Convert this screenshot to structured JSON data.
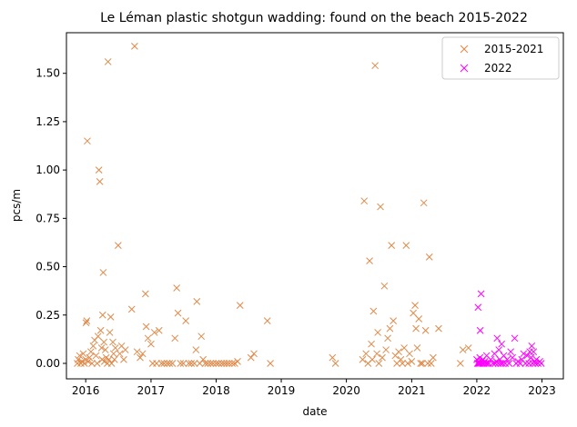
{
  "chart_data": {
    "type": "scatter",
    "title": "Le Léman plastic shotgun wadding: found on the beach 2015-2022",
    "xlabel": "date",
    "ylabel": "pcs/m",
    "xlim": [
      "2015-09-15",
      "2023-05-01"
    ],
    "ylim": [
      -0.08,
      1.71
    ],
    "x_ticks": [
      "2016",
      "2017",
      "2018",
      "2019",
      "2020",
      "2021",
      "2022",
      "2023"
    ],
    "y_ticks": [
      "0.00",
      "0.25",
      "0.50",
      "0.75",
      "1.00",
      "1.25",
      "1.50"
    ],
    "y_tick_values": [
      0,
      0.25,
      0.5,
      0.75,
      1.0,
      1.25,
      1.5
    ],
    "marker": "x",
    "grid": false,
    "legend_position": "top-right",
    "series": [
      {
        "name": "2015-2021",
        "color": "#E08A4A",
        "points": [
          [
            "2015-11-15",
            0.0
          ],
          [
            "2015-11-20",
            0.02
          ],
          [
            "2015-11-28",
            0.04
          ],
          [
            "2015-12-05",
            0.0
          ],
          [
            "2015-12-10",
            0.01
          ],
          [
            "2015-12-18",
            0.05
          ],
          [
            "2015-12-25",
            0.0
          ],
          [
            "2016-01-01",
            0.02
          ],
          [
            "2016-01-03",
            0.21
          ],
          [
            "2016-01-07",
            0.22
          ],
          [
            "2016-01-10",
            1.15
          ],
          [
            "2016-01-15",
            0.01
          ],
          [
            "2016-01-22",
            0.03
          ],
          [
            "2016-01-30",
            0.06
          ],
          [
            "2016-02-05",
            0.0
          ],
          [
            "2016-02-12",
            0.09
          ],
          [
            "2016-02-20",
            0.12
          ],
          [
            "2016-02-28",
            0.04
          ],
          [
            "2016-03-05",
            0.0
          ],
          [
            "2016-03-10",
            0.14
          ],
          [
            "2016-03-15",
            1.0
          ],
          [
            "2016-03-20",
            0.94
          ],
          [
            "2016-03-25",
            0.17
          ],
          [
            "2016-03-30",
            0.08
          ],
          [
            "2016-04-02",
            0.02
          ],
          [
            "2016-04-05",
            0.25
          ],
          [
            "2016-04-08",
            0.47
          ],
          [
            "2016-04-12",
            0.11
          ],
          [
            "2016-04-15",
            0.01
          ],
          [
            "2016-04-20",
            0.07
          ],
          [
            "2016-04-25",
            0.03
          ],
          [
            "2016-05-01",
            0.0
          ],
          [
            "2016-05-05",
            1.56
          ],
          [
            "2016-05-10",
            0.02
          ],
          [
            "2016-05-15",
            0.16
          ],
          [
            "2016-05-20",
            0.24
          ],
          [
            "2016-05-25",
            0.0
          ],
          [
            "2016-06-01",
            0.11
          ],
          [
            "2016-06-05",
            0.05
          ],
          [
            "2016-06-10",
            0.02
          ],
          [
            "2016-06-15",
            0.08
          ],
          [
            "2016-07-01",
            0.61
          ],
          [
            "2016-07-10",
            0.05
          ],
          [
            "2016-07-20",
            0.09
          ],
          [
            "2016-08-01",
            0.02
          ],
          [
            "2016-08-10",
            0.07
          ],
          [
            "2016-09-15",
            0.28
          ],
          [
            "2016-10-01",
            1.64
          ],
          [
            "2016-10-15",
            0.06
          ],
          [
            "2016-11-01",
            0.03
          ],
          [
            "2016-11-15",
            0.05
          ],
          [
            "2016-12-01",
            0.36
          ],
          [
            "2016-12-05",
            0.19
          ],
          [
            "2016-12-15",
            0.13
          ],
          [
            "2017-01-01",
            0.1
          ],
          [
            "2017-01-10",
            0.0
          ],
          [
            "2017-01-20",
            0.16
          ],
          [
            "2017-02-01",
            0.0
          ],
          [
            "2017-02-15",
            0.17
          ],
          [
            "2017-03-01",
            0.0
          ],
          [
            "2017-03-15",
            0.0
          ],
          [
            "2017-04-01",
            0.0
          ],
          [
            "2017-04-15",
            0.0
          ],
          [
            "2017-05-01",
            0.0
          ],
          [
            "2017-05-15",
            0.13
          ],
          [
            "2017-05-25",
            0.39
          ],
          [
            "2017-06-01",
            0.26
          ],
          [
            "2017-06-15",
            0.0
          ],
          [
            "2017-07-01",
            0.0
          ],
          [
            "2017-07-15",
            0.22
          ],
          [
            "2017-08-01",
            0.0
          ],
          [
            "2017-08-15",
            0.0
          ],
          [
            "2017-09-01",
            0.0
          ],
          [
            "2017-09-10",
            0.07
          ],
          [
            "2017-09-15",
            0.32
          ],
          [
            "2017-10-01",
            0.0
          ],
          [
            "2017-10-10",
            0.14
          ],
          [
            "2017-10-20",
            0.02
          ],
          [
            "2017-11-01",
            0.0
          ],
          [
            "2017-11-15",
            0.0
          ],
          [
            "2017-12-01",
            0.0
          ],
          [
            "2017-12-15",
            0.0
          ],
          [
            "2018-01-01",
            0.0
          ],
          [
            "2018-01-15",
            0.0
          ],
          [
            "2018-02-01",
            0.0
          ],
          [
            "2018-02-15",
            0.0
          ],
          [
            "2018-03-01",
            0.0
          ],
          [
            "2018-03-15",
            0.0
          ],
          [
            "2018-04-01",
            0.0
          ],
          [
            "2018-04-15",
            0.0
          ],
          [
            "2018-05-01",
            0.01
          ],
          [
            "2018-05-15",
            0.3
          ],
          [
            "2018-07-15",
            0.03
          ],
          [
            "2018-08-01",
            0.05
          ],
          [
            "2018-10-15",
            0.22
          ],
          [
            "2018-11-01",
            0.0
          ],
          [
            "2019-10-15",
            0.03
          ],
          [
            "2019-11-01",
            0.0
          ],
          [
            "2020-04-01",
            0.02
          ],
          [
            "2020-04-10",
            0.84
          ],
          [
            "2020-04-20",
            0.05
          ],
          [
            "2020-05-01",
            0.0
          ],
          [
            "2020-05-10",
            0.53
          ],
          [
            "2020-05-20",
            0.1
          ],
          [
            "2020-05-25",
            0.02
          ],
          [
            "2020-06-01",
            0.27
          ],
          [
            "2020-06-10",
            1.54
          ],
          [
            "2020-06-20",
            0.05
          ],
          [
            "2020-06-25",
            0.16
          ],
          [
            "2020-07-01",
            0.0
          ],
          [
            "2020-07-10",
            0.81
          ],
          [
            "2020-07-20",
            0.03
          ],
          [
            "2020-08-01",
            0.4
          ],
          [
            "2020-08-10",
            0.07
          ],
          [
            "2020-08-20",
            0.13
          ],
          [
            "2020-09-01",
            0.18
          ],
          [
            "2020-09-10",
            0.61
          ],
          [
            "2020-09-20",
            0.22
          ],
          [
            "2020-10-01",
            0.04
          ],
          [
            "2020-10-10",
            0.0
          ],
          [
            "2020-10-20",
            0.06
          ],
          [
            "2020-11-01",
            0.02
          ],
          [
            "2020-11-10",
            0.0
          ],
          [
            "2020-11-20",
            0.08
          ],
          [
            "2020-12-01",
            0.61
          ],
          [
            "2020-12-10",
            0.0
          ],
          [
            "2020-12-20",
            0.05
          ],
          [
            "2021-01-01",
            0.01
          ],
          [
            "2021-01-10",
            0.26
          ],
          [
            "2021-01-20",
            0.3
          ],
          [
            "2021-01-25",
            0.18
          ],
          [
            "2021-02-01",
            0.08
          ],
          [
            "2021-02-10",
            0.23
          ],
          [
            "2021-02-20",
            0.0
          ],
          [
            "2021-03-01",
            0.0
          ],
          [
            "2021-03-10",
            0.83
          ],
          [
            "2021-03-20",
            0.17
          ],
          [
            "2021-04-01",
            0.0
          ],
          [
            "2021-04-10",
            0.55
          ],
          [
            "2021-04-20",
            0.0
          ],
          [
            "2021-05-01",
            0.03
          ],
          [
            "2021-06-01",
            0.18
          ],
          [
            "2021-10-01",
            0.0
          ],
          [
            "2021-10-15",
            0.07
          ],
          [
            "2021-11-15",
            0.08
          ]
        ]
      },
      {
        "name": "2022",
        "color": "#FF00FF",
        "points": [
          [
            "2022-01-01",
            0.02
          ],
          [
            "2022-01-05",
            0.0
          ],
          [
            "2022-01-08",
            0.29
          ],
          [
            "2022-01-10",
            0.0
          ],
          [
            "2022-01-12",
            0.01
          ],
          [
            "2022-01-15",
            0.0
          ],
          [
            "2022-01-18",
            0.03
          ],
          [
            "2022-01-20",
            0.17
          ],
          [
            "2022-01-22",
            0.0
          ],
          [
            "2022-01-25",
            0.36
          ],
          [
            "2022-01-28",
            0.01
          ],
          [
            "2022-02-01",
            0.0
          ],
          [
            "2022-02-05",
            0.02
          ],
          [
            "2022-02-10",
            0.0
          ],
          [
            "2022-02-15",
            0.01
          ],
          [
            "2022-02-20",
            0.0
          ],
          [
            "2022-02-25",
            0.04
          ],
          [
            "2022-03-01",
            0.0
          ],
          [
            "2022-03-10",
            0.0
          ],
          [
            "2022-03-20",
            0.02
          ],
          [
            "2022-04-01",
            0.0
          ],
          [
            "2022-04-10",
            0.05
          ],
          [
            "2022-04-15",
            0.0
          ],
          [
            "2022-04-20",
            0.01
          ],
          [
            "2022-04-25",
            0.13
          ],
          [
            "2022-05-01",
            0.0
          ],
          [
            "2022-05-05",
            0.07
          ],
          [
            "2022-05-10",
            0.02
          ],
          [
            "2022-05-15",
            0.0
          ],
          [
            "2022-05-20",
            0.1
          ],
          [
            "2022-05-25",
            0.0
          ],
          [
            "2022-06-01",
            0.04
          ],
          [
            "2022-06-10",
            0.0
          ],
          [
            "2022-06-20",
            0.02
          ],
          [
            "2022-07-01",
            0.0
          ],
          [
            "2022-07-10",
            0.06
          ],
          [
            "2022-07-20",
            0.03
          ],
          [
            "2022-08-01",
            0.13
          ],
          [
            "2022-08-10",
            0.0
          ],
          [
            "2022-08-20",
            0.01
          ],
          [
            "2022-09-01",
            0.0
          ],
          [
            "2022-09-10",
            0.02
          ],
          [
            "2022-09-20",
            0.05
          ],
          [
            "2022-10-01",
            0.0
          ],
          [
            "2022-10-10",
            0.04
          ],
          [
            "2022-10-20",
            0.0
          ],
          [
            "2022-10-25",
            0.06
          ],
          [
            "2022-11-01",
            0.03
          ],
          [
            "2022-11-05",
            0.09
          ],
          [
            "2022-11-10",
            0.0
          ],
          [
            "2022-11-15",
            0.06
          ],
          [
            "2022-11-20",
            0.01
          ],
          [
            "2022-11-25",
            0.0
          ],
          [
            "2022-12-01",
            0.02
          ],
          [
            "2022-12-10",
            0.0
          ],
          [
            "2022-12-20",
            0.01
          ],
          [
            "2022-12-28",
            0.0
          ]
        ]
      }
    ]
  }
}
